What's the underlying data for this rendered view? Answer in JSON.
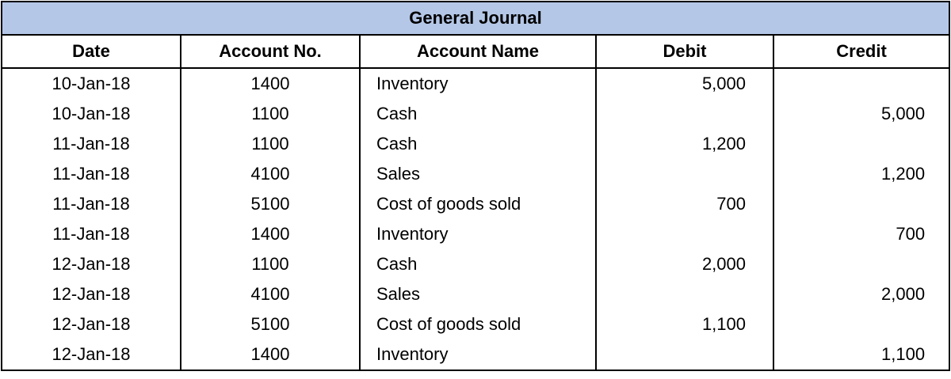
{
  "journal": {
    "title": "General Journal",
    "headers": {
      "date": "Date",
      "account_no": "Account No.",
      "account_name": "Account Name",
      "debit": "Debit",
      "credit": "Credit"
    },
    "rows": [
      {
        "date": "10-Jan-18",
        "account_no": "1400",
        "account_name": "Inventory",
        "debit": "5,000",
        "credit": ""
      },
      {
        "date": "10-Jan-18",
        "account_no": "1100",
        "account_name": "Cash",
        "debit": "",
        "credit": "5,000"
      },
      {
        "date": "11-Jan-18",
        "account_no": "1100",
        "account_name": "Cash",
        "debit": "1,200",
        "credit": ""
      },
      {
        "date": "11-Jan-18",
        "account_no": "4100",
        "account_name": "Sales",
        "debit": "",
        "credit": "1,200"
      },
      {
        "date": "11-Jan-18",
        "account_no": "5100",
        "account_name": "Cost of goods sold",
        "debit": "700",
        "credit": ""
      },
      {
        "date": "11-Jan-18",
        "account_no": "1400",
        "account_name": "Inventory",
        "debit": "",
        "credit": "700"
      },
      {
        "date": "12-Jan-18",
        "account_no": "1100",
        "account_name": "Cash",
        "debit": "2,000",
        "credit": ""
      },
      {
        "date": "12-Jan-18",
        "account_no": "4100",
        "account_name": "Sales",
        "debit": "",
        "credit": "2,000"
      },
      {
        "date": "12-Jan-18",
        "account_no": "5100",
        "account_name": "Cost of goods sold",
        "debit": "1,100",
        "credit": ""
      },
      {
        "date": "12-Jan-18",
        "account_no": "1400",
        "account_name": "Inventory",
        "debit": "",
        "credit": "1,100"
      }
    ],
    "colors": {
      "title_background": "#b4c7e7",
      "border": "#000000"
    }
  }
}
